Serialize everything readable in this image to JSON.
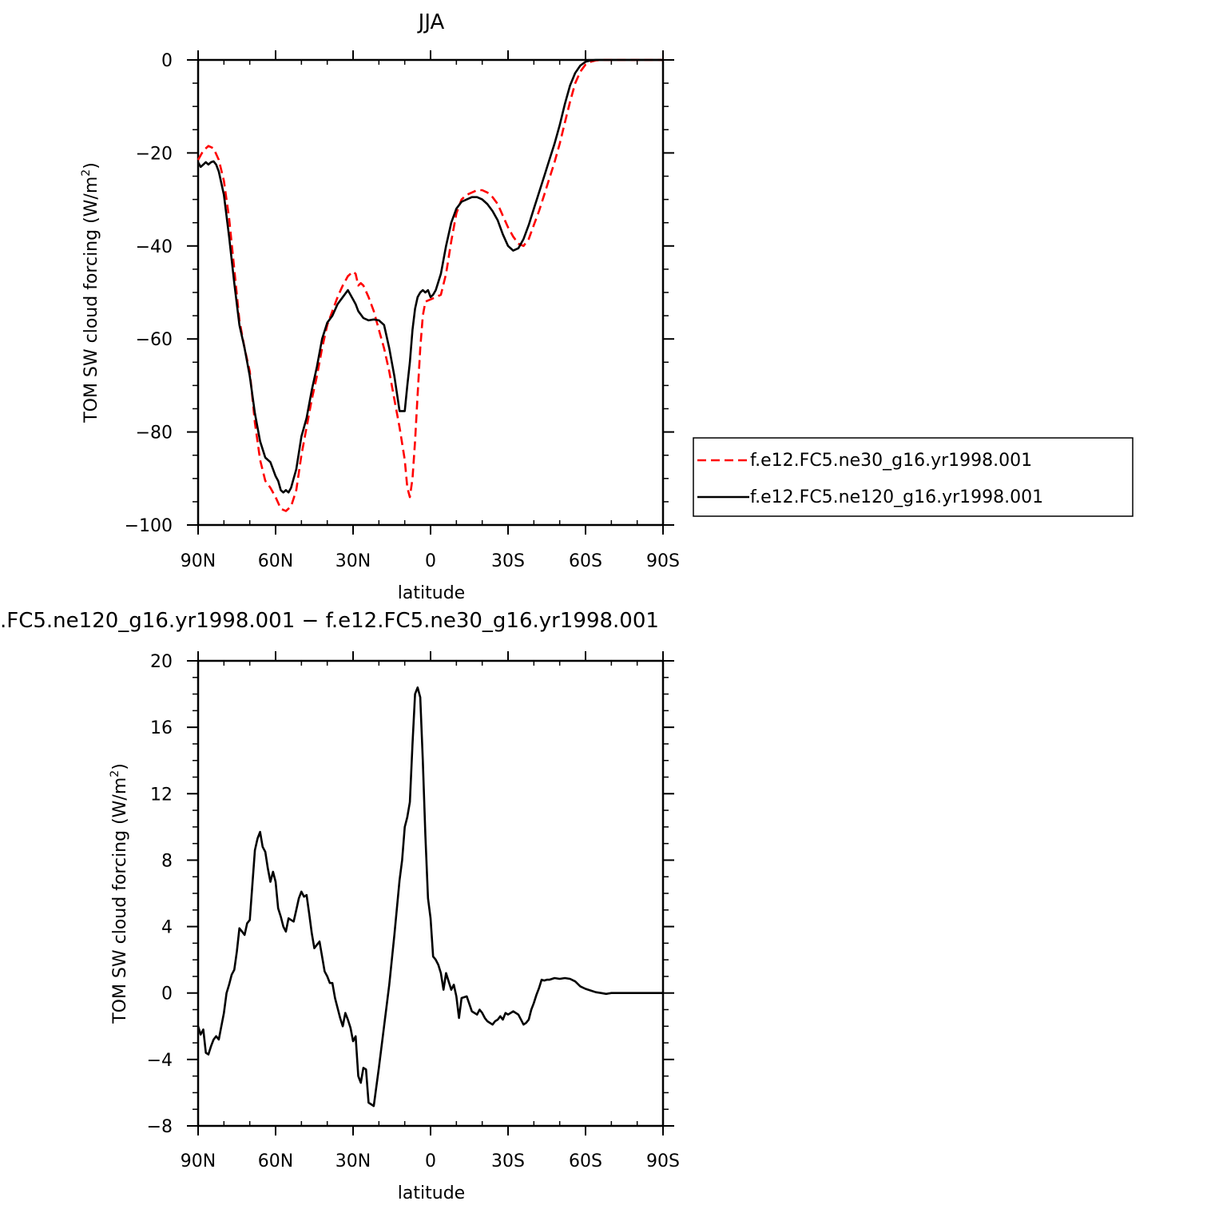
{
  "chart_data": [
    {
      "type": "line",
      "title": "JJA",
      "xlabel": "latitude",
      "ylabel": "TOM SW cloud forcing (W/m",
      "ylabel_sup": "2",
      "ylabel_close": ")",
      "xlim": [
        90,
        -90
      ],
      "ylim": [
        -100,
        0
      ],
      "x_ticks": [
        90,
        60,
        30,
        0,
        -30,
        -60,
        -90
      ],
      "x_tick_labels": [
        "90N",
        "60N",
        "30N",
        "0",
        "30S",
        "60S",
        "90S"
      ],
      "y_ticks": [
        -100,
        -80,
        -60,
        -40,
        -20,
        0
      ],
      "y_tick_labels": [
        "−100",
        "−80",
        "−60",
        "−40",
        "−20",
        "0"
      ],
      "legend_position": "right-outside",
      "series": [
        {
          "name": "f.e12.FC5.ne30_g16.yr1998.001",
          "color": "#ff0000",
          "dash": "dashed",
          "x": [
            90,
            88,
            86,
            84,
            82,
            80,
            78,
            76,
            74,
            72,
            70,
            68,
            66,
            64,
            62,
            60,
            58,
            56,
            54,
            52,
            50,
            48,
            46,
            44,
            42,
            40,
            38,
            36,
            34,
            32,
            30,
            29,
            28,
            27,
            26,
            24,
            22,
            20,
            18,
            16,
            14,
            12,
            10,
            9,
            8,
            7,
            6,
            5,
            4,
            3,
            2,
            0,
            -2,
            -4,
            -6,
            -8,
            -10,
            -12,
            -14,
            -16,
            -18,
            -20,
            -22,
            -24,
            -26,
            -28,
            -30,
            -32,
            -34,
            -36,
            -38,
            -40,
            -42,
            -44,
            -46,
            -48,
            -50,
            -52,
            -54,
            -56,
            -58,
            -60,
            -62,
            -64,
            -66,
            -68,
            -70,
            -72,
            -75,
            -80,
            -85,
            -90
          ],
          "y": [
            -21.5,
            -19.5,
            -18.5,
            -19.0,
            -21.5,
            -26.0,
            -34.0,
            -45.0,
            -56.0,
            -62.0,
            -67.0,
            -78.0,
            -86.0,
            -90.5,
            -92.0,
            -94.0,
            -96.5,
            -97.0,
            -96.0,
            -92.5,
            -85.0,
            -79.0,
            -73.0,
            -68.0,
            -62.0,
            -57.0,
            -54.0,
            -51.0,
            -48.5,
            -46.5,
            -45.5,
            -46.0,
            -48.5,
            -48.0,
            -48.5,
            -51.0,
            -54.0,
            -58.0,
            -62.0,
            -67.0,
            -73.0,
            -79.0,
            -86.0,
            -92.0,
            -94.0,
            -90.0,
            -82.0,
            -72.0,
            -62.0,
            -55.0,
            -52.0,
            -51.5,
            -51.0,
            -50.5,
            -46.0,
            -39.0,
            -33.0,
            -30.0,
            -29.0,
            -28.5,
            -28.0,
            -28.0,
            -28.5,
            -29.5,
            -31.0,
            -33.5,
            -36.0,
            -38.0,
            -39.5,
            -40.0,
            -38.5,
            -35.5,
            -32.5,
            -29.0,
            -25.5,
            -22.0,
            -18.0,
            -13.5,
            -9.0,
            -5.0,
            -2.5,
            -1.0,
            -0.4,
            -0.1,
            0.0,
            0.0,
            0.0,
            0.0,
            0.0,
            0.0,
            0.0,
            0.0
          ]
        },
        {
          "name": "f.e12.FC5.ne120_g16.yr1998.001",
          "color": "#000000",
          "dash": "solid",
          "x": [
            90,
            89,
            88,
            87,
            86,
            85,
            84,
            83,
            82,
            80,
            78,
            76,
            74,
            72,
            70,
            68,
            66,
            64,
            62,
            61,
            60,
            59,
            58,
            57,
            56,
            55,
            54,
            53,
            52,
            50,
            48,
            46,
            44,
            42,
            40,
            38,
            36,
            34,
            32,
            30,
            29,
            28,
            26,
            24,
            22,
            20,
            18,
            16,
            14,
            12,
            10,
            9,
            8,
            7,
            6,
            5,
            4,
            3,
            2,
            1,
            0,
            -1,
            -2,
            -4,
            -6,
            -8,
            -10,
            -12,
            -14,
            -16,
            -18,
            -20,
            -22,
            -24,
            -26,
            -28,
            -30,
            -32,
            -34,
            -36,
            -38,
            -40,
            -42,
            -44,
            -46,
            -48,
            -50,
            -52,
            -54,
            -56,
            -58,
            -60,
            -62,
            -64,
            -66,
            -68,
            -70,
            -72,
            -75,
            -80,
            -85,
            -90
          ],
          "y": [
            -22.0,
            -23.0,
            -22.5,
            -22.0,
            -22.5,
            -22.0,
            -21.8,
            -22.5,
            -24.0,
            -29.0,
            -38.0,
            -48.0,
            -57.0,
            -62.0,
            -68.0,
            -76.0,
            -82.0,
            -85.5,
            -86.5,
            -88.0,
            -89.5,
            -90.5,
            -92.5,
            -93.0,
            -92.5,
            -93.0,
            -92.0,
            -90.0,
            -88.0,
            -81.0,
            -77.0,
            -71.0,
            -66.0,
            -60.0,
            -56.5,
            -55.0,
            -52.5,
            -51.0,
            -49.5,
            -51.5,
            -52.5,
            -54.0,
            -55.5,
            -56.0,
            -55.8,
            -56.0,
            -57.0,
            -62.0,
            -68.0,
            -75.5,
            -75.5,
            -70.0,
            -65.0,
            -58.0,
            -53.5,
            -51.0,
            -50.0,
            -49.5,
            -50.0,
            -49.5,
            -51.0,
            -50.5,
            -49.5,
            -46.0,
            -40.0,
            -35.0,
            -32.0,
            -30.5,
            -30.0,
            -29.5,
            -29.5,
            -30.0,
            -31.0,
            -32.5,
            -34.5,
            -37.5,
            -40.0,
            -41.0,
            -40.5,
            -38.5,
            -35.5,
            -32.0,
            -28.5,
            -25.0,
            -21.5,
            -18.0,
            -14.0,
            -9.5,
            -5.5,
            -2.8,
            -1.2,
            -0.4,
            -0.1,
            0.0,
            0.0,
            0.0,
            0.0,
            0.0,
            0.0,
            0.0,
            0.0,
            0.0
          ]
        }
      ]
    },
    {
      "type": "line",
      "title": ".FC5.ne120_g16.yr1998.001 − f.e12.FC5.ne30_g16.yr1998.001",
      "xlabel": "latitude",
      "ylabel": "TOM SW cloud forcing (W/m",
      "ylabel_sup": "2",
      "ylabel_close": ")",
      "xlim": [
        90,
        -90
      ],
      "ylim": [
        -8,
        20
      ],
      "x_ticks": [
        90,
        60,
        30,
        0,
        -30,
        -60,
        -90
      ],
      "x_tick_labels": [
        "90N",
        "60N",
        "30N",
        "0",
        "30S",
        "60S",
        "90S"
      ],
      "y_ticks": [
        -8,
        -4,
        0,
        4,
        8,
        12,
        16,
        20
      ],
      "y_tick_labels": [
        "−8",
        "−4",
        "0",
        "4",
        "8",
        "12",
        "16",
        "20"
      ],
      "series": [
        {
          "color": "#000000",
          "dash": "solid",
          "x": [
            90,
            89,
            88,
            87,
            86,
            85,
            84,
            83,
            82,
            81,
            80,
            79,
            78,
            77,
            76,
            75,
            74,
            73,
            72,
            71,
            70,
            69,
            68,
            67,
            66,
            65,
            64,
            63,
            62,
            61,
            60,
            59,
            58,
            57,
            56,
            55,
            54,
            53,
            52,
            51,
            50,
            49,
            48,
            47,
            46,
            45,
            44,
            43,
            42,
            41,
            40,
            39,
            38,
            37,
            36,
            35,
            34,
            33,
            32,
            31,
            30,
            29,
            28,
            27,
            26,
            25,
            24,
            22,
            20,
            18,
            16,
            14,
            12,
            11,
            10,
            9,
            8,
            7,
            6,
            5,
            4,
            3,
            2,
            1,
            0,
            -1,
            -2,
            -3,
            -4,
            -5,
            -6,
            -8,
            -9,
            -10,
            -11,
            -12,
            -14,
            -16,
            -18,
            -19,
            -20,
            -21,
            -22,
            -24,
            -25,
            -26,
            -27,
            -28,
            -29,
            -30,
            -32,
            -34,
            -36,
            -37,
            -38,
            -39,
            -40,
            -41,
            -42,
            -43,
            -44,
            -45,
            -46,
            -48,
            -50,
            -52,
            -54,
            -56,
            -58,
            -60,
            -62,
            -64,
            -66,
            -68,
            -70,
            -75,
            -80,
            -85,
            -90
          ],
          "y": [
            -2.0,
            -2.5,
            -2.2,
            -3.6,
            -3.7,
            -3.2,
            -2.8,
            -2.6,
            -2.8,
            -2.0,
            -1.2,
            0.0,
            0.5,
            1.1,
            1.4,
            2.5,
            3.9,
            3.7,
            3.5,
            4.2,
            4.4,
            6.5,
            8.6,
            9.3,
            9.7,
            8.8,
            8.5,
            7.5,
            6.7,
            7.3,
            6.7,
            5.1,
            4.6,
            4.0,
            3.7,
            4.5,
            4.4,
            4.3,
            5.0,
            5.7,
            6.1,
            5.8,
            5.9,
            4.8,
            3.6,
            2.7,
            2.9,
            3.1,
            2.2,
            1.3,
            1.0,
            0.6,
            0.6,
            -0.3,
            -0.9,
            -1.5,
            -2.0,
            -1.2,
            -1.6,
            -2.1,
            -2.9,
            -2.6,
            -5.0,
            -5.4,
            -4.5,
            -4.6,
            -6.6,
            -6.8,
            -4.5,
            -2.0,
            0.5,
            3.5,
            6.8,
            8.0,
            10.0,
            10.6,
            11.5,
            15.0,
            18.0,
            18.4,
            17.8,
            14.0,
            9.5,
            5.7,
            4.5,
            2.2,
            2.0,
            1.7,
            1.2,
            0.2,
            1.2,
            0.2,
            0.5,
            -0.2,
            -1.5,
            -0.3,
            -0.2,
            -1.1,
            -1.3,
            -1.0,
            -1.2,
            -1.5,
            -1.7,
            -1.9,
            -1.7,
            -1.6,
            -1.4,
            -1.6,
            -1.2,
            -1.3,
            -1.1,
            -1.3,
            -1.9,
            -1.8,
            -1.6,
            -1.0,
            -0.6,
            -0.1,
            0.3,
            0.8,
            0.75,
            0.8,
            0.8,
            0.9,
            0.85,
            0.9,
            0.85,
            0.7,
            0.4,
            0.25,
            0.15,
            0.05,
            0.0,
            -0.05,
            0.0,
            0.0,
            0.0,
            0.0,
            0.0
          ]
        }
      ]
    }
  ]
}
